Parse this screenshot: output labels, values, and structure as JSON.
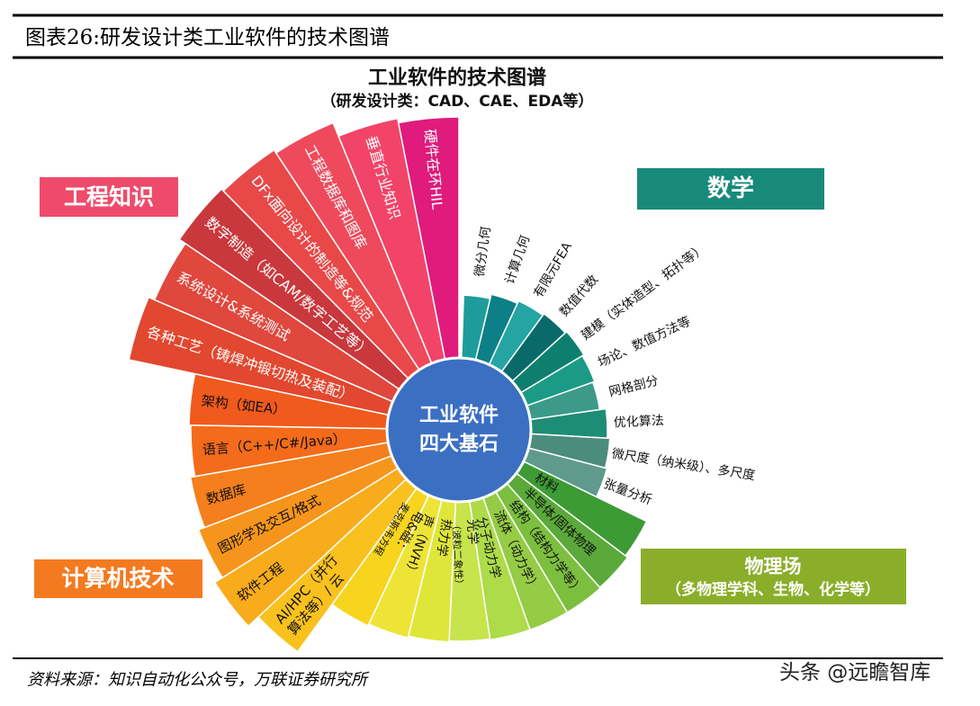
{
  "header": {
    "title": "图表26:研发设计类工业软件的技术图谱"
  },
  "diagram": {
    "title": "工业软件的技术图谱",
    "subtitle": "（研发设计类：CAD、CAE、EDA等）",
    "center": [
      "工业软件",
      "四大基石"
    ],
    "groups": [
      {
        "name": [
          "数学"
        ],
        "sectors": [
          [
            "微分几何"
          ],
          [
            "计算几何"
          ],
          [
            "有限元FEA"
          ],
          [
            "数值代数"
          ],
          [
            "建模（实体造型、拓扑等）"
          ],
          [
            "场论、数值方法等"
          ],
          [
            "网格剖分"
          ],
          [
            "优化算法"
          ],
          [
            "微尺度（纳米级）、多尺度"
          ],
          [
            "张量分析"
          ]
        ]
      },
      {
        "name": [
          "物理场",
          "（多物理学科、生物、化学等）"
        ],
        "sectors": [
          [
            "材料"
          ],
          [
            "半导体/固体物理"
          ],
          [
            "结构（结构力学等）"
          ],
          [
            "流体（动力学）"
          ],
          [
            "分子动力学"
          ],
          [
            "光学",
            "（波粒二象性）"
          ],
          [
            "热力学"
          ],
          [
            "声（NVH）"
          ],
          [
            "电&磁：",
            "麦克斯韦方程"
          ]
        ]
      },
      {
        "name": [
          "计算机技术"
        ],
        "sectors": [
          [
            "AI/HPC（并行",
            "算法等）/ 云"
          ],
          [
            "软件工程"
          ],
          [
            "图形学及交互/格式"
          ],
          [
            "数据库"
          ],
          [
            "语言（C++/C#/Java）"
          ],
          [
            "架构（如EA）"
          ]
        ]
      },
      {
        "name": [
          "工程知识"
        ],
        "sectors": [
          [
            "各种工艺（铸焊冲锻切热及装配）"
          ],
          [
            "系统设计&系统测试"
          ],
          [
            "数字制造（如CAM/数字工艺等）"
          ],
          [
            "DFx面向设计的制造等&规范"
          ],
          [
            "工程数据库和图库"
          ],
          [
            "垂直行业知识"
          ],
          [
            "硬件在环HIL"
          ]
        ]
      }
    ]
  },
  "footer": {
    "source": "资料来源：知识自动化公众号，万联证券研究所",
    "watermark": "头条 @远瞻智库"
  }
}
